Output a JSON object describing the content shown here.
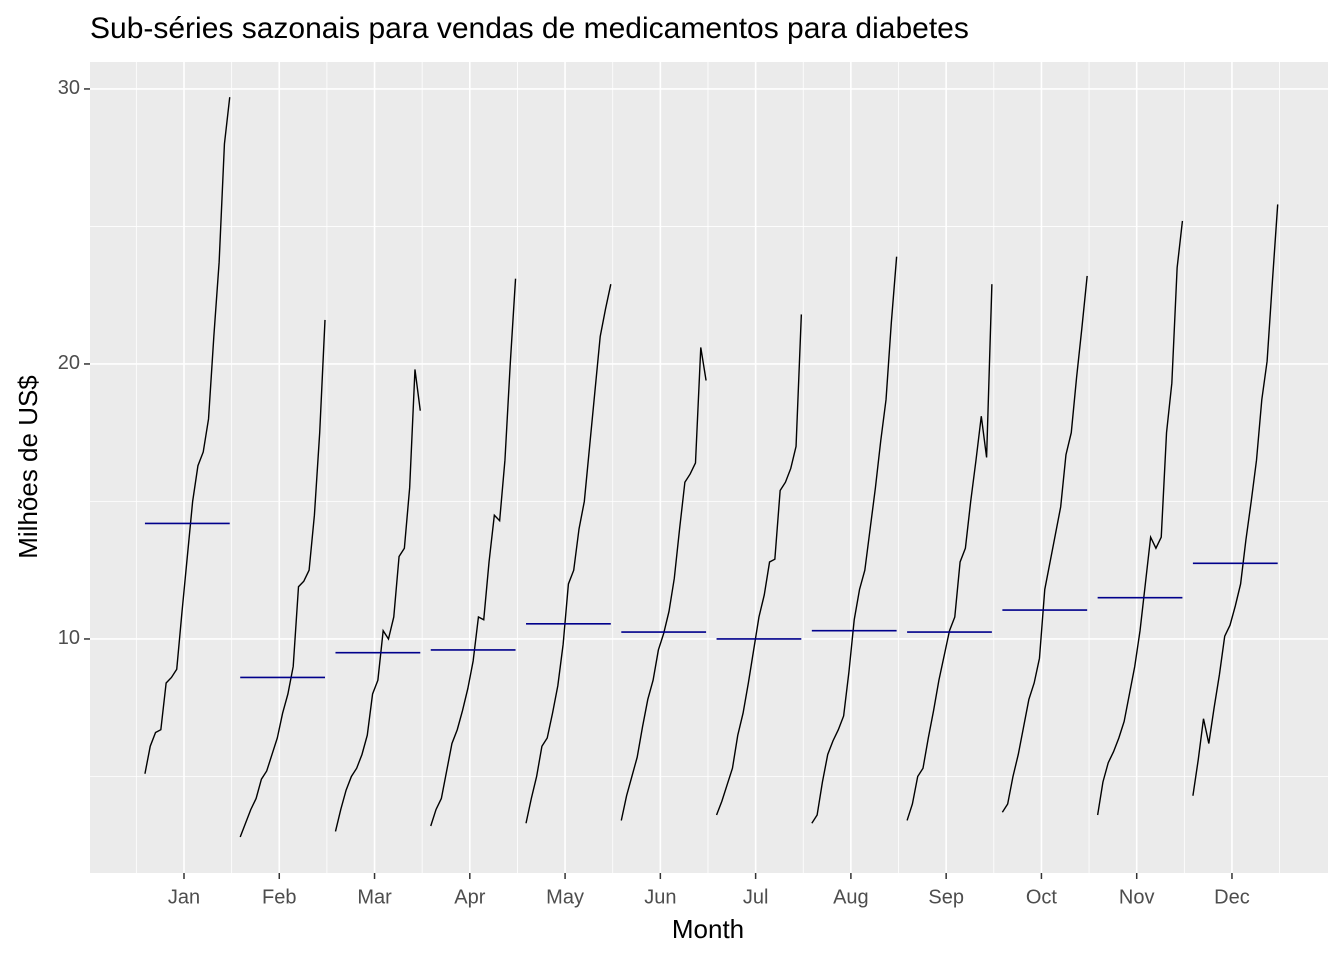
{
  "chart_data": {
    "type": "subseries",
    "title": "Sub-séries sazonais para vendas de medicamentos para diabetes",
    "x_label": "Month",
    "y_label": "Milhões de US$",
    "categories": [
      "Jan",
      "Feb",
      "Mar",
      "Apr",
      "May",
      "Jun",
      "Jul",
      "Aug",
      "Sep",
      "Oct",
      "Nov",
      "Dec"
    ],
    "values": [
      [
        5.1,
        6.1,
        6.6,
        6.7,
        8.4,
        8.6,
        8.9,
        11.0,
        13.0,
        15.0,
        16.3,
        16.8,
        18.0,
        21.0,
        23.7,
        28.0,
        29.7
      ],
      [
        2.8,
        3.3,
        3.8,
        4.2,
        4.9,
        5.2,
        5.8,
        6.4,
        7.3,
        8.0,
        9.0,
        11.9,
        12.1,
        12.5,
        14.5,
        17.5,
        21.6
      ],
      [
        3.0,
        3.8,
        4.5,
        5.0,
        5.3,
        5.8,
        6.5,
        8.0,
        8.5,
        10.3,
        10.0,
        10.8,
        13.0,
        13.3,
        15.5,
        19.8,
        18.3
      ],
      [
        3.2,
        3.8,
        4.2,
        5.2,
        6.2,
        6.7,
        7.4,
        8.2,
        9.2,
        10.8,
        10.7,
        12.8,
        14.5,
        14.3,
        16.5,
        20.0,
        23.1
      ],
      [
        3.3,
        4.2,
        5.0,
        6.1,
        6.4,
        7.3,
        8.3,
        9.8,
        12.0,
        12.5,
        14.0,
        15.0,
        17.0,
        19.0,
        21.0,
        22.0,
        22.9
      ],
      [
        3.4,
        4.3,
        5.0,
        5.7,
        6.8,
        7.8,
        8.5,
        9.6,
        10.2,
        11.0,
        12.2,
        14.0,
        15.7,
        16.0,
        16.4,
        20.6,
        19.4
      ],
      [
        3.6,
        4.1,
        4.7,
        5.3,
        6.5,
        7.3,
        8.4,
        9.6,
        10.8,
        11.6,
        12.8,
        12.9,
        15.4,
        15.7,
        16.2,
        17.0,
        21.8
      ],
      [
        3.3,
        3.6,
        4.8,
        5.8,
        6.3,
        6.7,
        7.2,
        8.8,
        10.7,
        11.8,
        12.5,
        14.0,
        15.5,
        17.2,
        18.7,
        21.5,
        23.9
      ],
      [
        3.4,
        4.0,
        5.0,
        5.3,
        6.4,
        7.4,
        8.5,
        9.4,
        10.3,
        10.8,
        12.8,
        13.3,
        15.0,
        16.5,
        18.1,
        16.6,
        22.9
      ],
      [
        3.7,
        4.0,
        5.0,
        5.8,
        6.8,
        7.8,
        8.4,
        9.3,
        11.8,
        12.8,
        13.8,
        14.8,
        16.7,
        17.5,
        19.5,
        21.3,
        23.2
      ],
      [
        3.6,
        4.8,
        5.5,
        5.9,
        6.4,
        7.0,
        8.0,
        9.0,
        10.3,
        12.0,
        13.7,
        13.3,
        13.7,
        17.5,
        19.3,
        23.5,
        25.2
      ],
      [
        4.3,
        5.6,
        7.1,
        6.2,
        7.5,
        8.7,
        10.1,
        10.5,
        11.2,
        12.0,
        13.6,
        15.0,
        16.5,
        18.7,
        20.1,
        23.0,
        25.8
      ]
    ],
    "means": [
      14.2,
      8.6,
      9.5,
      9.6,
      10.55,
      10.25,
      10.0,
      10.3,
      10.25,
      11.05,
      11.5,
      12.75
    ],
    "color": "#000000",
    "mean_color": "#00008b",
    "ylim": [
      1.49,
      30.98
    ],
    "yticks": [
      10,
      20,
      30
    ],
    "yminor": [
      5,
      15,
      25
    ],
    "grid": true
  }
}
